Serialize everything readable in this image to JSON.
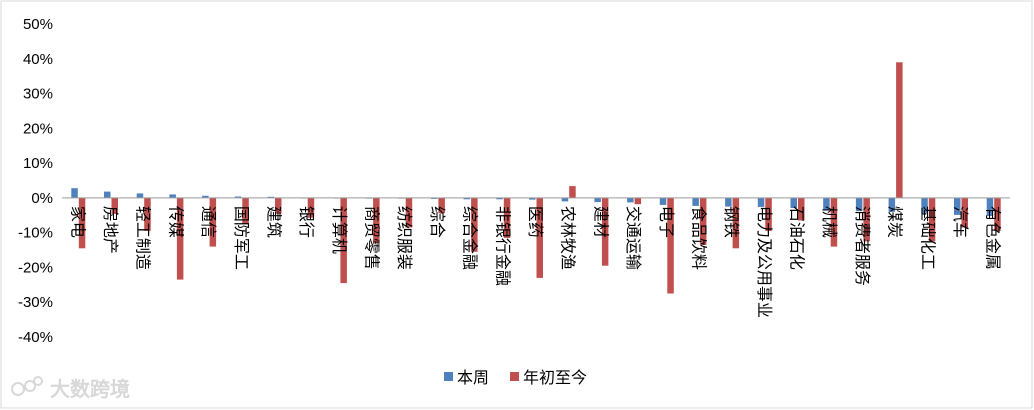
{
  "chart_data": {
    "type": "bar",
    "title": "",
    "xlabel": "",
    "ylabel": "",
    "ylim": [
      -40,
      50
    ],
    "y_ticks": [
      50,
      40,
      30,
      20,
      10,
      0,
      -10,
      -20,
      -30,
      -40
    ],
    "y_tick_labels": [
      "50%",
      "40%",
      "30%",
      "20%",
      "10%",
      "0%",
      "-10%",
      "-20%",
      "-30%",
      "-40%"
    ],
    "grid": false,
    "legend_position": "bottom",
    "categories": [
      "家电",
      "房地产",
      "轻工制造",
      "传媒",
      "通信",
      "国防军工",
      "建筑",
      "银行",
      "计算机",
      "商贸零售",
      "纺织服装",
      "综合",
      "综合金融",
      "非银行金融",
      "医药",
      "农林牧渔",
      "建材",
      "交通运输",
      "电子",
      "食品饮料",
      "钢铁",
      "电力及公用事业",
      "石油石化",
      "机械",
      "消费者服务",
      "煤炭",
      "基础化工",
      "汽车",
      "有色金属"
    ],
    "series": [
      {
        "name": "本周",
        "color": "#4f81bd",
        "values": [
          2.8,
          1.8,
          1.3,
          1.0,
          0.6,
          0.4,
          0.3,
          -0.1,
          -0.1,
          -0.2,
          -0.2,
          -0.3,
          -0.4,
          -0.4,
          -0.5,
          -1.0,
          -1.2,
          -1.3,
          -2.0,
          -2.3,
          -2.5,
          -2.6,
          -2.9,
          -3.6,
          -3.8,
          -4.0,
          -4.3,
          -4.9,
          -5.2
        ]
      },
      {
        "name": "年初至今",
        "color": "#c0504d",
        "values": [
          -14.5,
          -4.6,
          -9.5,
          -23.5,
          -14.0,
          -7.5,
          -4.6,
          -5.7,
          -24.5,
          -13.0,
          -8.5,
          -4.4,
          -15.5,
          -11.5,
          -23.0,
          3.4,
          -19.5,
          -1.8,
          -27.5,
          -13.5,
          -14.5,
          -9.5,
          -6.5,
          -14.0,
          -12.5,
          39.0,
          -12.5,
          -8.5,
          -9.5
        ]
      }
    ]
  },
  "watermark": "大数跨境"
}
